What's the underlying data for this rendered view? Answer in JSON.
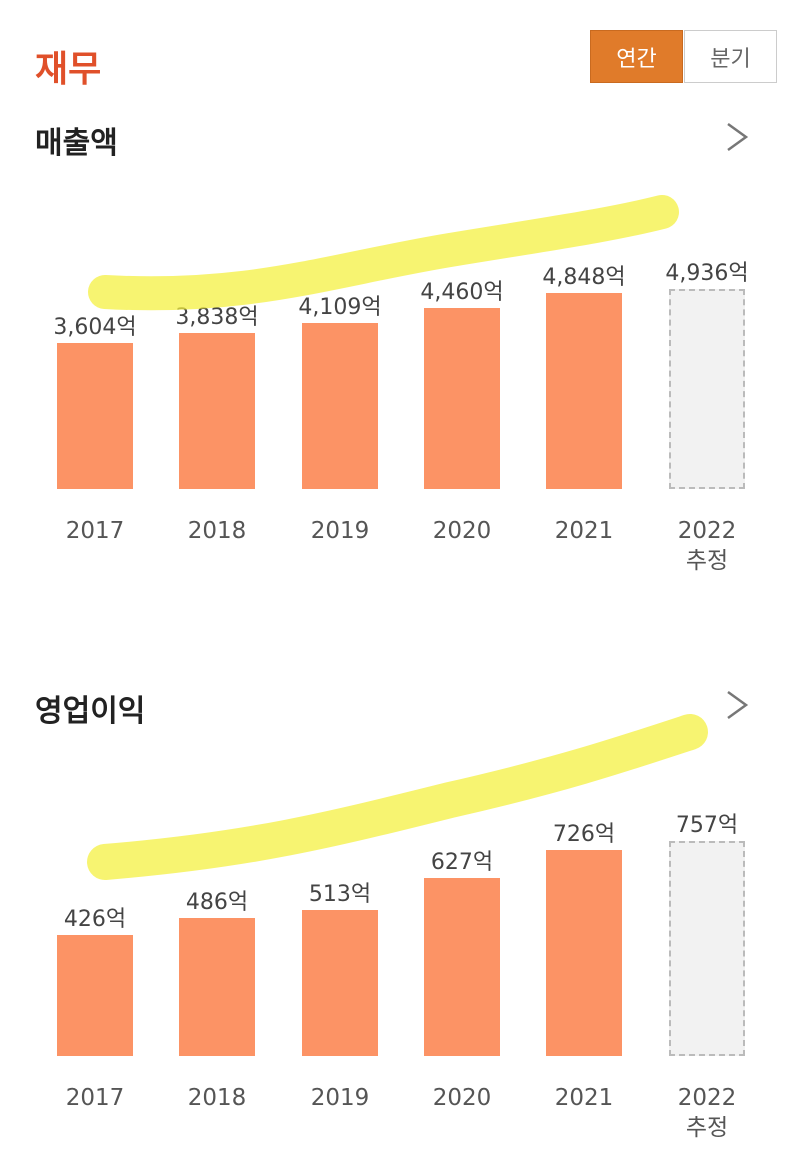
{
  "header": {
    "title": "재무",
    "tabs": [
      "연간",
      "분기"
    ]
  },
  "chart_data": [
    {
      "type": "bar",
      "title": "매출액",
      "categories": [
        "2017",
        "2018",
        "2019",
        "2020",
        "2021",
        "2022\n추정"
      ],
      "values": [
        3604,
        3838,
        4109,
        4460,
        4848,
        4936
      ],
      "value_labels": [
        "3,604억",
        "3,838억",
        "4,109억",
        "4,460억",
        "4,848억",
        "4,936억"
      ],
      "colors": [
        "#fc9365",
        "#fc9365",
        "#fc9365",
        "#fc9365",
        "#fc9365",
        "#f2f2f2"
      ]
    },
    {
      "type": "bar",
      "title": "영업이익",
      "categories": [
        "2017",
        "2018",
        "2019",
        "2020",
        "2021",
        "2022\n추정"
      ],
      "values": [
        426,
        486,
        513,
        627,
        726,
        757
      ],
      "value_labels": [
        "426억",
        "486억",
        "513억",
        "627억",
        "726억",
        "757억"
      ],
      "colors": [
        "#fc9365",
        "#fc9365",
        "#fc9365",
        "#fc9365",
        "#fc9365",
        "#f2f2f2"
      ]
    }
  ]
}
